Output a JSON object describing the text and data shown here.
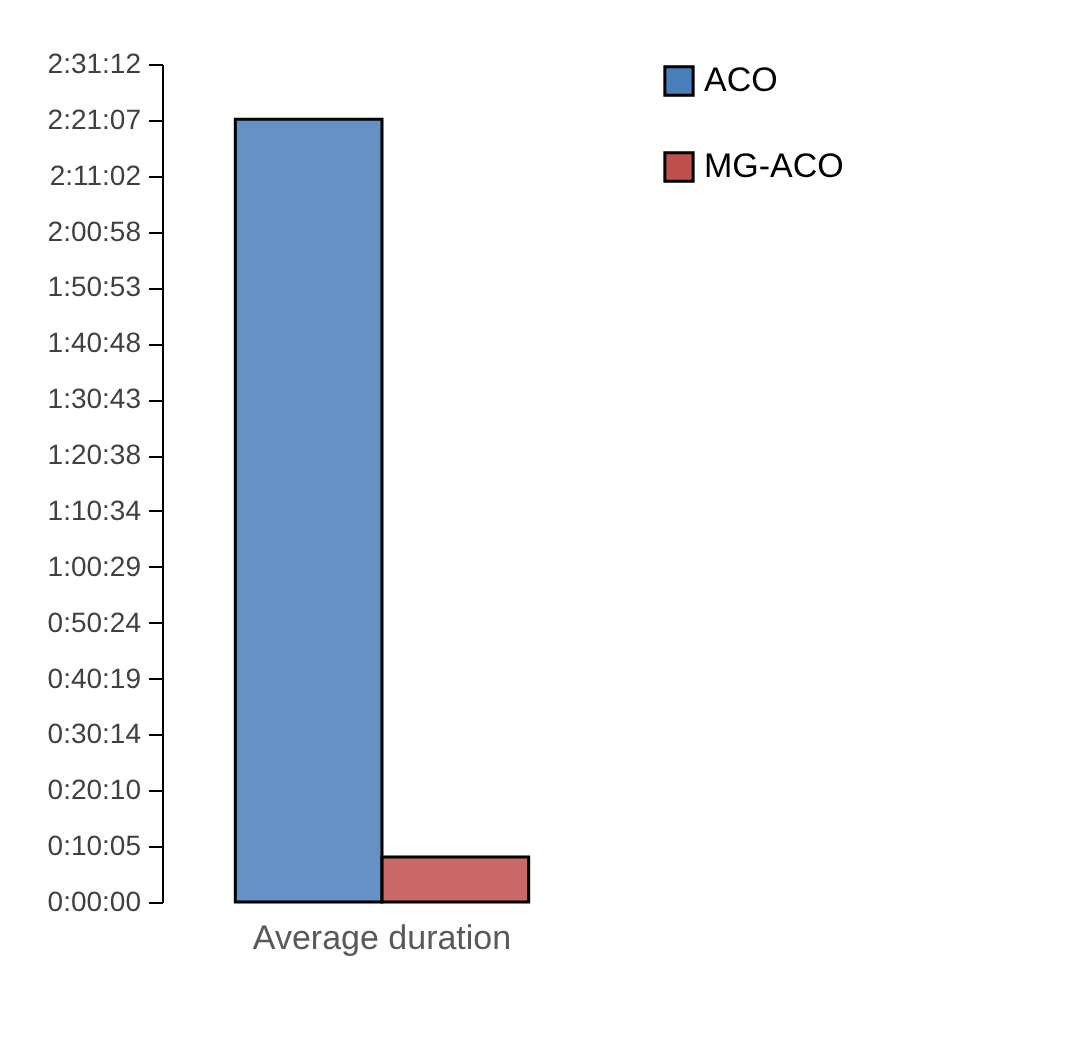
{
  "chart_data": {
    "type": "bar",
    "categories": [
      "Average duration"
    ],
    "series": [
      {
        "name": "ACO",
        "color": "#4a7ebb",
        "values": [
          2.354
        ]
      },
      {
        "name": "MG-ACO",
        "color": "#c0504d",
        "values": [
          0.135
        ]
      }
    ],
    "ylim": [
      0,
      2.52
    ],
    "yticks": [
      {
        "value": 0,
        "label": "0:00:00"
      },
      {
        "value": 0.168,
        "label": "0:10:05"
      },
      {
        "value": 0.336,
        "label": "0:20:10"
      },
      {
        "value": 0.504,
        "label": "0:30:14"
      },
      {
        "value": 0.672,
        "label": "0:40:19"
      },
      {
        "value": 0.84,
        "label": "0:50:24"
      },
      {
        "value": 1.008,
        "label": "1:00:29"
      },
      {
        "value": 1.176,
        "label": "1:10:34"
      },
      {
        "value": 1.344,
        "label": "1:20:38"
      },
      {
        "value": 1.512,
        "label": "1:30:43"
      },
      {
        "value": 1.68,
        "label": "1:40:48"
      },
      {
        "value": 1.848,
        "label": "1:50:53"
      },
      {
        "value": 2.016,
        "label": "2:00:58"
      },
      {
        "value": 2.184,
        "label": "2:11:02"
      },
      {
        "value": 2.352,
        "label": "2:21:07"
      },
      {
        "value": 2.52,
        "label": "2:31:12"
      }
    ],
    "grid": false,
    "legend": "right"
  }
}
